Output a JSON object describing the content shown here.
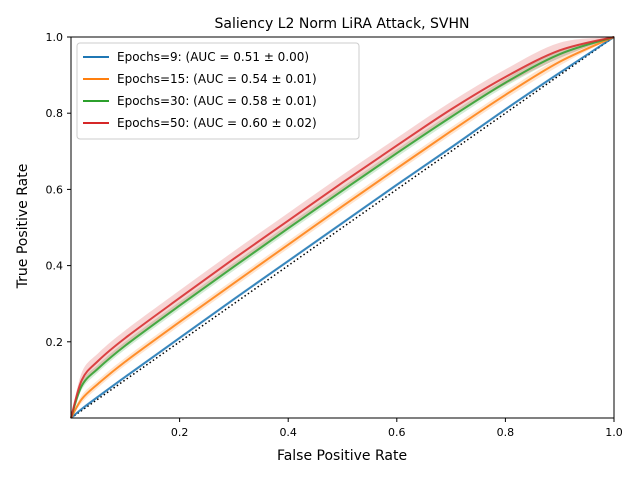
{
  "chart_data": {
    "type": "line",
    "title": "Saliency L2 Norm LiRA Attack, SVHN",
    "xlabel": "False Positive Rate",
    "ylabel": "True Positive Rate",
    "xlim": [
      0,
      1
    ],
    "ylim": [
      0,
      1
    ],
    "xticks": [
      0.2,
      0.4,
      0.6,
      0.8,
      1.0
    ],
    "xtick_labels": [
      "0.2",
      "0.4",
      "0.6",
      "0.8",
      "1.0"
    ],
    "yticks": [
      0.2,
      0.4,
      0.6,
      0.8,
      1.0
    ],
    "ytick_labels": [
      "0.2",
      "0.4",
      "0.6",
      "0.8",
      "1.0"
    ],
    "grid": false,
    "legend_position": "top-left",
    "baseline": {
      "x": [
        0,
        1
      ],
      "y": [
        0,
        1
      ],
      "style": "dotted",
      "color": "#000000"
    },
    "series": [
      {
        "name": "Epochs=9: (AUC = 0.51 ± 0.00)",
        "color": "#1f77b4",
        "x": [
          0,
          0.02,
          0.05,
          0.1,
          0.2,
          0.3,
          0.4,
          0.5,
          0.6,
          0.7,
          0.8,
          0.9,
          1.0
        ],
        "y": [
          0,
          0.024,
          0.056,
          0.108,
          0.21,
          0.312,
          0.412,
          0.512,
          0.612,
          0.71,
          0.81,
          0.906,
          1.0
        ],
        "band": 0.004
      },
      {
        "name": "Epochs=15: (AUC = 0.54 ± 0.01)",
        "color": "#ff7f0e",
        "x": [
          0,
          0.02,
          0.05,
          0.1,
          0.2,
          0.3,
          0.4,
          0.5,
          0.6,
          0.7,
          0.8,
          0.9,
          1.0
        ],
        "y": [
          0,
          0.05,
          0.09,
          0.148,
          0.252,
          0.354,
          0.455,
          0.556,
          0.655,
          0.753,
          0.848,
          0.935,
          1.0
        ],
        "band": 0.01
      },
      {
        "name": "Epochs=30: (AUC = 0.58 ± 0.01)",
        "color": "#2ca02c",
        "x": [
          0,
          0.02,
          0.05,
          0.1,
          0.2,
          0.3,
          0.4,
          0.5,
          0.6,
          0.7,
          0.8,
          0.9,
          1.0
        ],
        "y": [
          0,
          0.085,
          0.13,
          0.19,
          0.295,
          0.397,
          0.498,
          0.597,
          0.695,
          0.79,
          0.88,
          0.955,
          1.0
        ],
        "band": 0.01
      },
      {
        "name": "Epochs=50: (AUC = 0.60 ± 0.02)",
        "color": "#d62728",
        "x": [
          0,
          0.02,
          0.05,
          0.1,
          0.2,
          0.3,
          0.4,
          0.5,
          0.6,
          0.7,
          0.8,
          0.9,
          1.0
        ],
        "y": [
          0,
          0.1,
          0.15,
          0.21,
          0.315,
          0.418,
          0.518,
          0.618,
          0.715,
          0.81,
          0.895,
          0.965,
          1.0
        ],
        "band": 0.02
      }
    ]
  }
}
